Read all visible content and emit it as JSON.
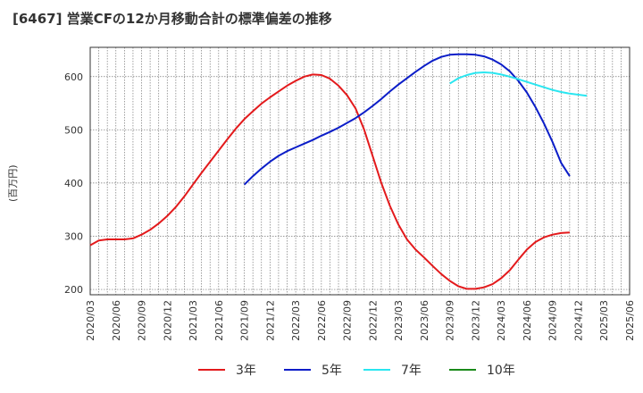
{
  "chart_data": {
    "type": "line",
    "title": "[6467]  営業CFの12か月移動合計の標準偏差の推移",
    "ylabel": "(百万円)",
    "xlabel": "",
    "ylim": [
      190,
      655
    ],
    "yticks": [
      200,
      300,
      400,
      500,
      600
    ],
    "x_ticks": [
      "2020/03",
      "2020/06",
      "2020/09",
      "2020/12",
      "2021/03",
      "2021/06",
      "2021/09",
      "2021/12",
      "2022/03",
      "2022/06",
      "2022/09",
      "2022/12",
      "2023/03",
      "2023/06",
      "2023/09",
      "2023/12",
      "2024/03",
      "2024/06",
      "2024/09",
      "2024/12",
      "2025/03",
      "2025/06"
    ],
    "x_range": [
      "2020/03",
      "2025/06"
    ],
    "grid": true,
    "legend_position": "bottom",
    "series": [
      {
        "name": "3年",
        "color": "#e31a1c",
        "points": [
          [
            "2020/03",
            283
          ],
          [
            "2020/04",
            292
          ],
          [
            "2020/05",
            294
          ],
          [
            "2020/06",
            294
          ],
          [
            "2020/07",
            294
          ],
          [
            "2020/08",
            296
          ],
          [
            "2020/09",
            303
          ],
          [
            "2020/10",
            312
          ],
          [
            "2020/11",
            324
          ],
          [
            "2020/12",
            338
          ],
          [
            "2021/01",
            355
          ],
          [
            "2021/02",
            375
          ],
          [
            "2021/03",
            397
          ],
          [
            "2021/04",
            419
          ],
          [
            "2021/05",
            440
          ],
          [
            "2021/06",
            461
          ],
          [
            "2021/07",
            482
          ],
          [
            "2021/08",
            502
          ],
          [
            "2021/09",
            520
          ],
          [
            "2021/10",
            535
          ],
          [
            "2021/11",
            549
          ],
          [
            "2021/12",
            561
          ],
          [
            "2022/01",
            572
          ],
          [
            "2022/02",
            583
          ],
          [
            "2022/03",
            592
          ],
          [
            "2022/04",
            600
          ],
          [
            "2022/05",
            604
          ],
          [
            "2022/06",
            603
          ],
          [
            "2022/07",
            596
          ],
          [
            "2022/08",
            583
          ],
          [
            "2022/09",
            565
          ],
          [
            "2022/10",
            540
          ],
          [
            "2022/11",
            500
          ],
          [
            "2022/12",
            450
          ],
          [
            "2023/01",
            400
          ],
          [
            "2023/02",
            357
          ],
          [
            "2023/03",
            322
          ],
          [
            "2023/04",
            294
          ],
          [
            "2023/05",
            275
          ],
          [
            "2023/06",
            260
          ],
          [
            "2023/07",
            244
          ],
          [
            "2023/08",
            229
          ],
          [
            "2023/09",
            216
          ],
          [
            "2023/10",
            206
          ],
          [
            "2023/11",
            201
          ],
          [
            "2023/12",
            201
          ],
          [
            "2024/01",
            204
          ],
          [
            "2024/02",
            210
          ],
          [
            "2024/03",
            221
          ],
          [
            "2024/04",
            236
          ],
          [
            "2024/05",
            256
          ],
          [
            "2024/06",
            275
          ],
          [
            "2024/07",
            289
          ],
          [
            "2024/08",
            298
          ],
          [
            "2024/09",
            303
          ],
          [
            "2024/10",
            306
          ],
          [
            "2024/11",
            307
          ]
        ]
      },
      {
        "name": "5年",
        "color": "#0b1dc8",
        "points": [
          [
            "2021/09",
            397
          ],
          [
            "2021/10",
            413
          ],
          [
            "2021/11",
            427
          ],
          [
            "2021/12",
            440
          ],
          [
            "2022/01",
            451
          ],
          [
            "2022/02",
            460
          ],
          [
            "2022/03",
            467
          ],
          [
            "2022/04",
            474
          ],
          [
            "2022/05",
            481
          ],
          [
            "2022/06",
            489
          ],
          [
            "2022/07",
            496
          ],
          [
            "2022/08",
            504
          ],
          [
            "2022/09",
            513
          ],
          [
            "2022/10",
            522
          ],
          [
            "2022/11",
            533
          ],
          [
            "2022/12",
            545
          ],
          [
            "2023/01",
            558
          ],
          [
            "2023/02",
            572
          ],
          [
            "2023/03",
            585
          ],
          [
            "2023/04",
            597
          ],
          [
            "2023/05",
            609
          ],
          [
            "2023/06",
            620
          ],
          [
            "2023/07",
            630
          ],
          [
            "2023/08",
            637
          ],
          [
            "2023/09",
            641
          ],
          [
            "2023/10",
            642
          ],
          [
            "2023/11",
            642
          ],
          [
            "2023/12",
            641
          ],
          [
            "2024/01",
            638
          ],
          [
            "2024/02",
            632
          ],
          [
            "2024/03",
            623
          ],
          [
            "2024/04",
            610
          ],
          [
            "2024/05",
            592
          ],
          [
            "2024/06",
            570
          ],
          [
            "2024/07",
            543
          ],
          [
            "2024/08",
            512
          ],
          [
            "2024/09",
            477
          ],
          [
            "2024/10",
            438
          ],
          [
            "2024/11",
            413
          ]
        ]
      },
      {
        "name": "7年",
        "color": "#2ae6f0",
        "points": [
          [
            "2023/09",
            587
          ],
          [
            "2023/10",
            597
          ],
          [
            "2023/11",
            603
          ],
          [
            "2023/12",
            607
          ],
          [
            "2024/01",
            608
          ],
          [
            "2024/02",
            607
          ],
          [
            "2024/03",
            604
          ],
          [
            "2024/04",
            600
          ],
          [
            "2024/05",
            595
          ],
          [
            "2024/06",
            590
          ],
          [
            "2024/07",
            585
          ],
          [
            "2024/08",
            580
          ],
          [
            "2024/09",
            575
          ],
          [
            "2024/10",
            571
          ],
          [
            "2024/11",
            568
          ],
          [
            "2024/12",
            566
          ],
          [
            "2025/01",
            564
          ]
        ]
      },
      {
        "name": "10年",
        "color": "#1a8a1a",
        "points": []
      }
    ]
  }
}
